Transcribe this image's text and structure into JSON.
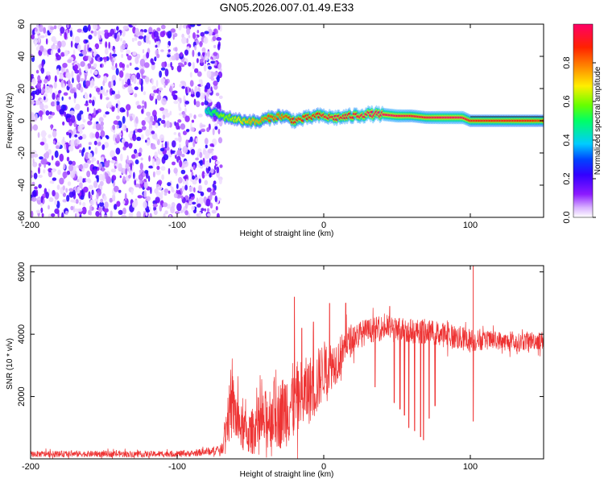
{
  "title": "GN05.2026.007.01.49.E33",
  "chart_data": [
    {
      "type": "heatmap",
      "xlabel": "Height of straight line (km)",
      "ylabel": "Frequency (Hz)",
      "xlim": [
        -200,
        150
      ],
      "ylim": [
        -60,
        60
      ],
      "x_ticks": [
        -200,
        -100,
        0,
        100
      ],
      "x_tick_labels": [
        "-200",
        "-100",
        "0",
        "100"
      ],
      "y_ticks": [
        -60,
        -40,
        -20,
        0,
        20,
        40,
        60
      ],
      "y_tick_labels": [
        "-60",
        "-40",
        "-20",
        "0",
        "20",
        "40",
        "60"
      ],
      "colorbar": {
        "label": "Normalized spectral amplitude",
        "range": [
          0,
          1
        ],
        "ticks": [
          0.0,
          0.2,
          0.4,
          0.6,
          0.8
        ],
        "tick_labels": [
          "0.0",
          "0.2",
          "0.4",
          "0.6",
          "0.8"
        ],
        "colors": [
          "#ffffff",
          "#d9b3ff",
          "#8c1aff",
          "#3300ff",
          "#0044ff",
          "#00ccff",
          "#00ff66",
          "#66ff00",
          "#ffee00",
          "#ff8800",
          "#ff2200",
          "#ff0066"
        ]
      },
      "noise_region": {
        "x": [
          -200,
          -73
        ],
        "freq": [
          -60,
          60
        ],
        "amplitude": [
          0.02,
          0.25
        ]
      },
      "ridge": {
        "x": [
          -80,
          -75,
          -70,
          -65,
          -60,
          -55,
          -50,
          -45,
          -40,
          -35,
          -30,
          -25,
          -20,
          -15,
          -10,
          -5,
          0,
          5,
          10,
          20,
          30,
          40,
          50,
          60,
          70,
          80,
          90,
          95,
          100,
          110,
          120,
          130,
          140,
          150
        ],
        "freq": [
          6,
          5,
          3,
          2,
          1,
          0,
          0,
          -1,
          1,
          2,
          3,
          2,
          0,
          1,
          2,
          3,
          3,
          2,
          2,
          3,
          4,
          4,
          3,
          3,
          2,
          2,
          2,
          2,
          0,
          0,
          0,
          0,
          0,
          0
        ],
        "amplitude": [
          0.4,
          0.5,
          0.6,
          0.6,
          0.65,
          0.7,
          0.75,
          0.75,
          0.8,
          0.85,
          0.8,
          0.85,
          0.9,
          0.9,
          0.9,
          0.9,
          0.95,
          0.95,
          0.95,
          0.95,
          1.0,
          1.0,
          1.0,
          0.95,
          0.95,
          1.0,
          1.0,
          1.0,
          0.9,
          0.9,
          0.9,
          0.9,
          0.9,
          0.85
        ]
      }
    },
    {
      "type": "line",
      "xlabel": "Height of straight line (km)",
      "ylabel": "SNR (10 * v/v)",
      "xlim": [
        -200,
        150
      ],
      "ylim": [
        0,
        6200
      ],
      "x_ticks": [
        -200,
        -100,
        0,
        100
      ],
      "x_tick_labels": [
        "-200",
        "-100",
        "0",
        "100"
      ],
      "y_ticks": [
        2000,
        4000,
        6000
      ],
      "y_tick_labels": [
        "2000",
        "4000",
        "6000"
      ],
      "color": "#ee3333",
      "envelope": {
        "x": [
          -200,
          -160,
          -120,
          -90,
          -70,
          -65,
          -62,
          -58,
          -55,
          -50,
          -45,
          -40,
          -35,
          -30,
          -25,
          -20,
          -15,
          -10,
          -5,
          0,
          5,
          10,
          15,
          20,
          30,
          40,
          50,
          60,
          70,
          80,
          90,
          100,
          110,
          120,
          130,
          140,
          150
        ],
        "mean": [
          150,
          160,
          150,
          170,
          300,
          1400,
          1700,
          1100,
          900,
          800,
          1100,
          1200,
          1500,
          1400,
          1700,
          1800,
          2000,
          2200,
          2400,
          2900,
          3000,
          3200,
          3600,
          3900,
          4100,
          4200,
          4200,
          4100,
          4100,
          4000,
          3900,
          3800,
          3800,
          3800,
          3700,
          3800,
          3800
        ],
        "spread": [
          100,
          100,
          100,
          100,
          150,
          900,
          1100,
          800,
          700,
          700,
          900,
          1000,
          1100,
          1100,
          1300,
          1300,
          1200,
          1100,
          1100,
          900,
          800,
          700,
          600,
          500,
          400,
          400,
          400,
          400,
          400,
          400,
          400,
          400,
          300,
          300,
          300,
          300,
          300
        ]
      },
      "spikes": [
        {
          "x": -20,
          "y": 5200
        },
        {
          "x": -15,
          "y": 4200
        },
        {
          "x": -7,
          "y": 4400
        },
        {
          "x": 4,
          "y": 5000
        },
        {
          "x": 15,
          "y": 5000
        },
        {
          "x": 45,
          "y": 4900
        },
        {
          "x": 102,
          "y": 6200
        },
        {
          "x": 102,
          "y": 1200
        }
      ],
      "dips": [
        {
          "x": 35,
          "y": 2300
        },
        {
          "x": 48,
          "y": 1800
        },
        {
          "x": 52,
          "y": 1600
        },
        {
          "x": 55,
          "y": 1400
        },
        {
          "x": 58,
          "y": 1000
        },
        {
          "x": 62,
          "y": 900
        },
        {
          "x": 66,
          "y": 700
        },
        {
          "x": 68,
          "y": 600
        },
        {
          "x": 72,
          "y": 1300
        },
        {
          "x": 76,
          "y": 1700
        }
      ]
    }
  ]
}
